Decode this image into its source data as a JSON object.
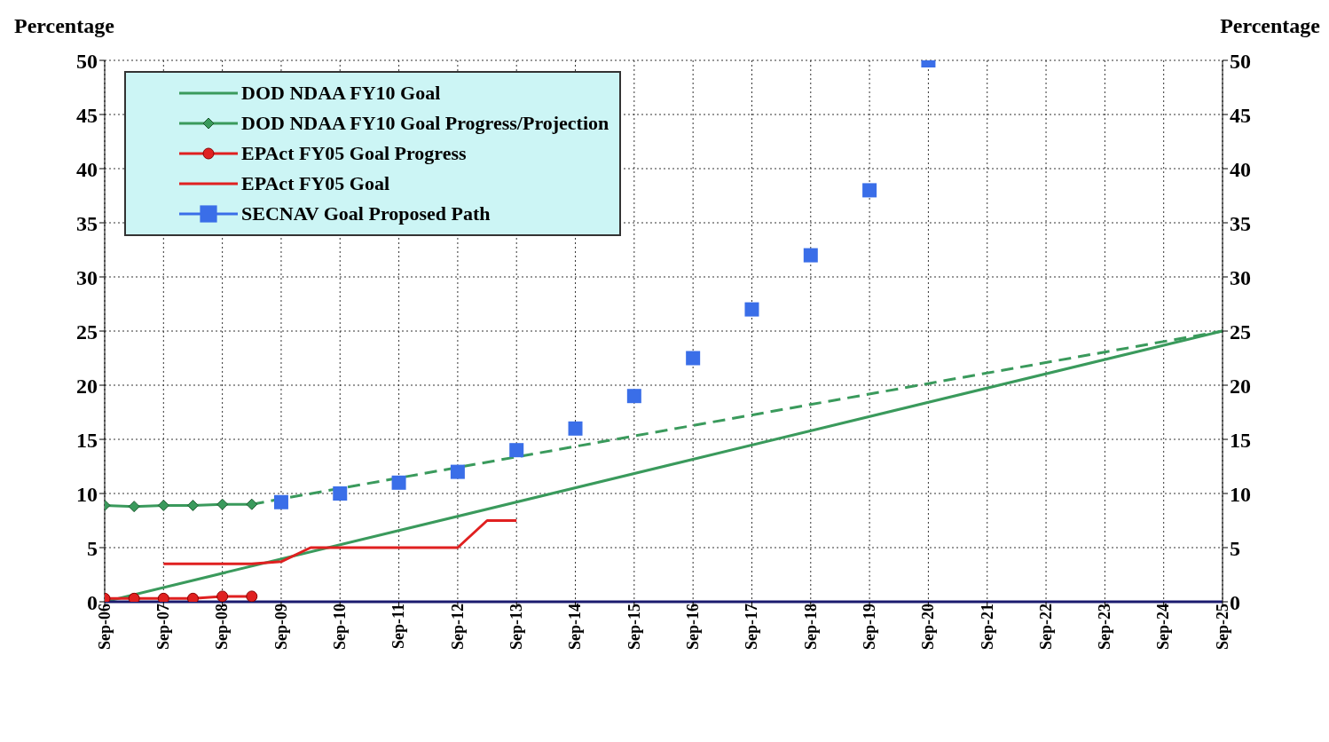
{
  "chart_data": {
    "type": "line",
    "ylabel": "Percentage",
    "y2label": "Percentage",
    "xlim": [
      "2006-09",
      "2025-09"
    ],
    "xticks": [
      {
        "value": "2006-09",
        "label": "Sep-06"
      },
      {
        "value": "2007-09",
        "label": "Sep-07"
      },
      {
        "value": "2008-09",
        "label": "Sep-08"
      },
      {
        "value": "2009-09",
        "label": "Sep-09"
      },
      {
        "value": "2010-09",
        "label": "Sep-10"
      },
      {
        "value": "2011-09",
        "label": "Sep-11"
      },
      {
        "value": "2012-09",
        "label": "Sep-12"
      },
      {
        "value": "2013-09",
        "label": "Sep-13"
      },
      {
        "value": "2014-09",
        "label": "Sep-14"
      },
      {
        "value": "2015-09",
        "label": "Sep-15"
      },
      {
        "value": "2016-09",
        "label": "Sep-16"
      },
      {
        "value": "2017-09",
        "label": "Sep-17"
      },
      {
        "value": "2018-09",
        "label": "Sep-18"
      },
      {
        "value": "2019-09",
        "label": "Sep-19"
      },
      {
        "value": "2020-09",
        "label": "Sep-20"
      },
      {
        "value": "2021-09",
        "label": "Sep-21"
      },
      {
        "value": "2022-09",
        "label": "Sep-22"
      },
      {
        "value": "2023-09",
        "label": "Sep-23"
      },
      {
        "value": "2024-09",
        "label": "Sep-24"
      },
      {
        "value": "2025-09",
        "label": "Sep-25"
      }
    ],
    "ylim": [
      0,
      50
    ],
    "yticks": [
      0,
      5,
      10,
      15,
      20,
      25,
      30,
      35,
      40,
      45,
      50
    ],
    "y2lim": [
      0,
      50
    ],
    "y2ticks": [
      0,
      5,
      10,
      15,
      20,
      25,
      30,
      35,
      40,
      45,
      50
    ],
    "grid": true,
    "legend": "top left",
    "series": [
      {
        "name": "DOD NDAA FY10 Goal",
        "color": "#3a9a5c",
        "marker": "none",
        "line_style": "solid",
        "x": [
          "2006-09",
          "2025-09"
        ],
        "values": [
          0,
          25
        ]
      },
      {
        "name": "DOD NDAA FY10 Goal Progress/Projection",
        "color": "#3a9a5c",
        "marker": "diamond",
        "line_style": "solid",
        "x": [
          "2006-09",
          "2007-03",
          "2007-09",
          "2008-03",
          "2008-09",
          "2009-03"
        ],
        "values": [
          8.9,
          8.8,
          8.9,
          8.9,
          9.0,
          9.0
        ]
      },
      {
        "color": "#3a9a5c",
        "marker": "none",
        "line_style": "dashed",
        "x": [
          "2009-03",
          "2009-09",
          "2025-09"
        ],
        "values": [
          9.0,
          9.5,
          25
        ]
      },
      {
        "name": "EPAct FY05 Goal Progress",
        "color": "#e02020",
        "marker": "circle",
        "line_style": "solid",
        "x": [
          "2006-09",
          "2007-03",
          "2007-09",
          "2008-03",
          "2008-09",
          "2009-03"
        ],
        "values": [
          0.3,
          0.3,
          0.3,
          0.3,
          0.5,
          0.5
        ]
      },
      {
        "name": "EPAct FY05 Goal",
        "color": "#e02020",
        "marker": "none",
        "line_style": "solid",
        "x": [
          "2007-09",
          "2009-03",
          "2009-09",
          "2010-03",
          "2012-09",
          "2013-03",
          "2013-09"
        ],
        "values": [
          3.5,
          3.5,
          3.7,
          5,
          5,
          7.5,
          7.5
        ]
      },
      {
        "name": "SECNAV Goal Proposed Path",
        "type": "scatter",
        "color": "#3a6ee8",
        "marker": "square",
        "x": [
          "2009-09",
          "2010-09",
          "2011-09",
          "2012-09",
          "2013-09",
          "2014-09",
          "2015-09",
          "2016-09",
          "2017-09",
          "2018-09",
          "2019-09",
          "2020-09"
        ],
        "values": [
          9.2,
          10,
          11,
          12,
          14,
          16,
          19,
          22.5,
          27,
          32,
          38,
          50
        ]
      }
    ]
  }
}
